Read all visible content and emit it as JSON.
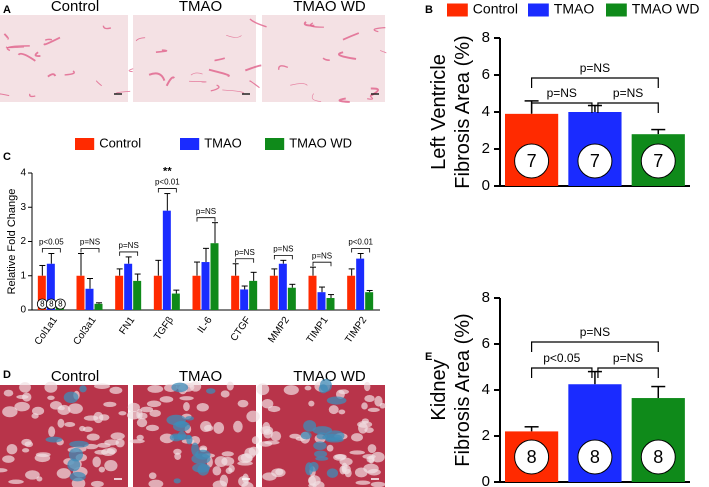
{
  "panel_labels": [
    "A",
    "B",
    "C",
    "D",
    "E"
  ],
  "image_titles_a": [
    "Control",
    "TMAO",
    "TMAO WD"
  ],
  "image_titles_d": [
    "Control",
    "TMAO",
    "TMAO WD"
  ],
  "chart_data": [
    {
      "type": "bar",
      "ylabel": [
        "Left Ventricle",
        "Fibrosis Area (%)"
      ],
      "categories": [
        "Control",
        "TMAO",
        "TMAO WD"
      ],
      "colors": [
        "#ff2a00",
        "#1a2bff",
        "#0f8a1a"
      ],
      "values": [
        3.9,
        4.0,
        2.8
      ],
      "errors": [
        0.7,
        0.35,
        0.25
      ],
      "n_labels": [
        7,
        7,
        7
      ],
      "ylim": [
        0,
        8
      ],
      "yticks": [
        0,
        2,
        4,
        6,
        8
      ],
      "annotations": [
        "p=NS",
        "p=NS",
        "p=NS"
      ]
    },
    {
      "type": "grouped_bar",
      "ylabel": "Relative Fold Change",
      "categories": [
        "Col1a1",
        "Col3a1",
        "FN1",
        "TGFβ",
        "IL-6",
        "CTGF",
        "MMP2",
        "TIMP1",
        "TIMP2"
      ],
      "series": [
        {
          "name": "Control",
          "color": "#ff2a00",
          "values": [
            1,
            1,
            1,
            1,
            1,
            1,
            1,
            1,
            1
          ],
          "errors": [
            0.3,
            0.65,
            0.2,
            0.45,
            0.4,
            0.35,
            0.2,
            0.25,
            0.2
          ]
        },
        {
          "name": "TMAO",
          "color": "#1a2bff",
          "values": [
            1.35,
            0.62,
            1.35,
            2.9,
            1.4,
            0.6,
            1.35,
            0.52,
            1.5
          ],
          "errors": [
            0.3,
            0.3,
            0.2,
            0.5,
            0.4,
            0.1,
            0.1,
            0.15,
            0.15
          ]
        },
        {
          "name": "TMAO WD",
          "color": "#0f8a1a",
          "values": [
            0.1,
            0.18,
            0.85,
            0.48,
            1.95,
            0.85,
            0.65,
            0.35,
            0.52
          ],
          "errors": [
            0.05,
            0.03,
            0.2,
            0.1,
            0.6,
            0.25,
            0.1,
            0.1,
            0.05
          ]
        }
      ],
      "n_labels": [
        8,
        8,
        8
      ],
      "ylim": [
        0,
        4
      ],
      "yticks": [
        0,
        1,
        2,
        3,
        4
      ],
      "annotations": [
        "p<0.05",
        "p=NS",
        "p=NS",
        "p<0.01",
        "p=NS",
        "p=NS",
        "p=NS",
        "p=NS",
        "p<0.01"
      ],
      "star_label": "**"
    },
    {
      "type": "bar",
      "ylabel": [
        "Kidney",
        "Fibrosis Area (%)"
      ],
      "colors": [
        "#ff2a00",
        "#1a2bff",
        "#0f8a1a"
      ],
      "values": [
        2.2,
        4.25,
        3.65
      ],
      "errors": [
        0.2,
        0.55,
        0.5
      ],
      "n_labels": [
        8,
        8,
        8
      ],
      "ylim": [
        0,
        8
      ],
      "yticks": [
        0,
        2,
        4,
        6,
        8
      ],
      "annotations": [
        "p=NS",
        "p<0.05",
        "p=NS"
      ]
    }
  ]
}
